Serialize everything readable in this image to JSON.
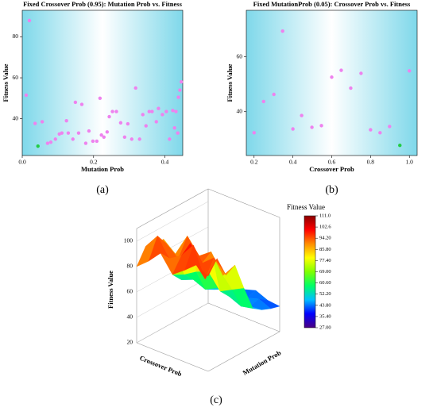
{
  "chart_data": [
    {
      "type": "scatter",
      "title": "Fixed Crossover Prob (0.95): Mutation Prob vs. Fitness",
      "panel_label": "(a)",
      "x_label": "Mutation Prob",
      "y_label": "Fitness Value",
      "x": [
        0.02,
        0.011,
        0.036,
        0.056,
        0.044,
        0.071,
        0.08,
        0.093,
        0.104,
        0.111,
        0.129,
        0.124,
        0.142,
        0.149,
        0.167,
        0.158,
        0.178,
        0.187,
        0.198,
        0.209,
        0.218,
        0.222,
        0.229,
        0.238,
        0.244,
        0.253,
        0.264,
        0.276,
        0.287,
        0.296,
        0.307,
        0.318,
        0.329,
        0.338,
        0.347,
        0.356,
        0.364,
        0.376,
        0.382,
        0.393,
        0.404,
        0.413,
        0.422,
        0.427,
        0.431,
        0.436,
        0.438,
        0.442,
        0.446
      ],
      "values": [
        88,
        51.5,
        37.7,
        38.5,
        26.6,
        28,
        28.5,
        30,
        32.5,
        33,
        33,
        39,
        30,
        48,
        47,
        33,
        28,
        34,
        29,
        29,
        50,
        32,
        31,
        33.5,
        41,
        43.5,
        43.5,
        38,
        31,
        37.5,
        30,
        55,
        30,
        42,
        36.5,
        43.5,
        43.5,
        38.5,
        45,
        42,
        43.5,
        30,
        44,
        35.5,
        43.5,
        33,
        50.5,
        54,
        58
      ],
      "color": "#ee82ee",
      "highlight_color": "#22cc44",
      "highlight_index": 4,
      "xlim": [
        0,
        0.45
      ],
      "ylim": [
        22,
        93
      ],
      "xticks": [
        {
          "value": 0,
          "label": "0.0"
        },
        0.2,
        0.4
      ],
      "yticks": [
        40,
        60,
        80
      ]
    },
    {
      "type": "scatter",
      "title": "Fixed MutationProb (0.05): Crossover Prob vs. Fitness",
      "panel_label": "(b)",
      "x_label": "Crossover Prob",
      "y_label": "Fitness Value",
      "x": [
        0.2,
        0.249,
        0.302,
        0.347,
        0.4,
        0.445,
        0.498,
        0.547,
        0.6,
        0.649,
        0.698,
        0.751,
        0.8,
        0.849,
        0.898,
        0.951,
        1.0
      ],
      "values": [
        32.3,
        43.7,
        46.3,
        69.4,
        33.7,
        38.6,
        34.3,
        34.9,
        52.6,
        55.1,
        48.6,
        54,
        33.4,
        32.3,
        34.6,
        27.7,
        54.9
      ],
      "color": "#ee82ee",
      "highlight_color": "#22cc44",
      "highlight_index": 15,
      "xlim": [
        0.16,
        1.04
      ],
      "ylim": [
        24,
        77
      ],
      "xticks": [
        0.2,
        0.4,
        0.6,
        0.8,
        {
          "value": 1,
          "label": "1.0"
        }
      ],
      "yticks": [
        40,
        60
      ]
    },
    {
      "type": "surface",
      "panel_label": "(c)",
      "x_label": "Crossover Prob",
      "y_label": "Mutation Prob",
      "z_label": "Fitness Value",
      "colorbar_title": "Fitness Value",
      "z": [
        [
          95,
          105,
          88,
          92,
          70,
          50,
          45,
          42,
          40
        ],
        [
          100,
          85,
          98,
          80,
          65,
          48,
          44,
          46,
          41
        ],
        [
          92,
          108,
          90,
          95,
          60,
          52,
          47,
          43,
          45
        ],
        [
          85,
          96,
          102,
          88,
          72,
          55,
          50,
          44,
          42
        ],
        [
          98,
          90,
          86,
          100,
          68,
          50,
          46,
          48,
          43
        ],
        [
          88,
          104,
          94,
          82,
          62,
          54,
          45,
          42,
          46
        ],
        [
          80,
          92,
          88,
          90,
          58,
          50,
          48,
          44,
          40
        ]
      ],
      "zlim": [
        20,
        110
      ],
      "zticks": [
        20,
        40,
        60,
        80,
        100
      ],
      "clim": [
        27,
        111
      ],
      "colorscale": [
        "#4b0082",
        "#0000ff",
        "#00bfff",
        "#00ff66",
        "#7fff00",
        "#ffff00",
        "#ff8c00",
        "#ff0000",
        "#8b0000"
      ],
      "cticks": [
        {
          "value": 27,
          "label": "27.00"
        },
        {
          "value": 35.4,
          "label": "35.40"
        },
        {
          "value": 43.8,
          "label": "43.80"
        },
        {
          "value": 52.2,
          "label": "52.20"
        },
        {
          "value": 60.6,
          "label": "60.60"
        },
        {
          "value": 69,
          "label": "69.00"
        },
        {
          "value": 77.4,
          "label": "77.40"
        },
        {
          "value": 85.8,
          "label": "85.80"
        },
        {
          "value": 94.2,
          "label": "94.20"
        },
        102.6,
        {
          "value": 111,
          "label": "111.0"
        }
      ]
    }
  ]
}
